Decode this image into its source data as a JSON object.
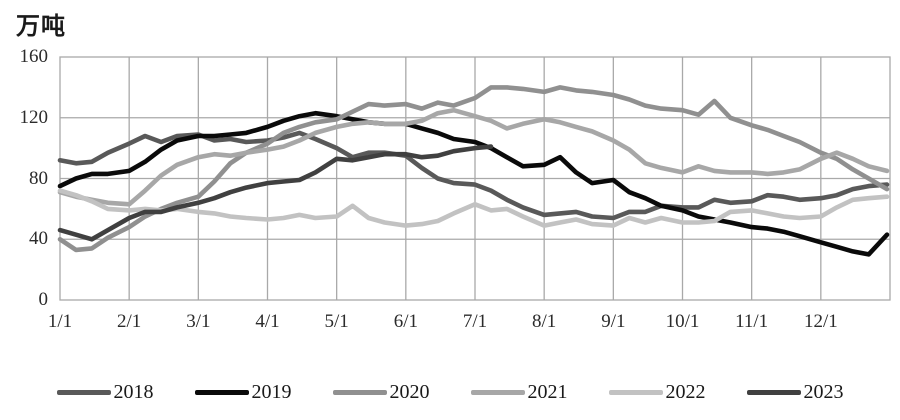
{
  "title": {
    "unit_label": "万吨"
  },
  "chart_data": {
    "type": "line",
    "grid": true,
    "legend_position": "bottom",
    "ylim": [
      0,
      160
    ],
    "y_ticks": [
      0,
      40,
      80,
      120,
      160
    ],
    "x_tick_labels": [
      "1/1",
      "2/1",
      "3/1",
      "4/1",
      "5/1",
      "6/1",
      "7/1",
      "8/1",
      "9/1",
      "10/1",
      "11/1",
      "12/1"
    ],
    "points_per_month": 4,
    "note": "values are weekly (4 per month: day 1/8/15/22), estimated from pixels; full-year series have a 49th year-end point; 2023 ends in early July",
    "series": [
      {
        "name": "2018",
        "color": "#595959",
        "values": [
          92,
          90,
          91,
          97,
          103,
          108,
          104,
          108,
          109,
          105,
          106,
          104,
          105,
          107,
          110,
          106,
          100,
          94,
          97,
          97,
          95,
          87,
          80,
          77,
          76,
          72,
          66,
          61,
          56,
          57,
          58,
          55,
          54,
          58,
          58,
          62,
          61,
          61,
          66,
          64,
          65,
          69,
          68,
          66,
          67,
          69,
          73,
          75,
          76
        ]
      },
      {
        "name": "2019",
        "color": "#0a0a0a",
        "values": [
          75,
          80,
          83,
          83,
          85,
          91,
          99,
          105,
          108,
          108,
          109,
          110,
          114,
          118,
          121,
          123,
          121,
          119,
          117,
          116,
          116,
          113,
          110,
          106,
          104,
          100,
          94,
          88,
          89,
          94,
          84,
          77,
          79,
          71,
          67,
          62,
          59,
          55,
          53,
          51,
          48,
          47,
          45,
          42,
          38,
          35,
          32,
          30,
          43
        ]
      },
      {
        "name": "2020",
        "color": "#909090",
        "values": [
          40,
          33,
          34,
          41,
          48,
          55,
          60,
          64,
          68,
          78,
          90,
          97,
          103,
          110,
          114,
          117,
          119,
          124,
          129,
          128,
          129,
          126,
          130,
          128,
          133,
          140,
          140,
          139,
          137,
          140,
          138,
          137,
          135,
          132,
          128,
          126,
          125,
          122,
          131,
          120,
          115,
          112,
          108,
          104,
          97,
          93,
          86,
          80,
          73
        ]
      },
      {
        "name": "2021",
        "color": "#a7a7a7",
        "values": [
          71,
          68,
          66,
          64,
          63,
          72,
          82,
          89,
          94,
          96,
          95,
          97,
          99,
          101,
          105,
          110,
          114,
          116,
          117,
          116,
          116,
          118,
          123,
          125,
          121,
          118,
          113,
          116,
          119,
          117,
          114,
          111,
          105,
          99,
          90,
          87,
          84,
          88,
          85,
          84,
          84,
          83,
          84,
          86,
          93,
          97,
          93,
          88,
          85
        ]
      },
      {
        "name": "2022",
        "color": "#c2c2c2",
        "values": [
          72,
          69,
          65,
          60,
          59,
          60,
          59,
          60,
          58,
          57,
          55,
          54,
          53,
          54,
          56,
          54,
          55,
          62,
          54,
          51,
          49,
          50,
          52,
          57,
          63,
          59,
          60,
          55,
          49,
          51,
          53,
          50,
          49,
          54,
          51,
          54,
          51,
          51,
          52,
          58,
          59,
          57,
          55,
          54,
          55,
          61,
          66,
          67,
          68
        ]
      },
      {
        "name": "2023",
        "color": "#404040",
        "values": [
          46,
          43,
          40,
          46,
          54,
          58,
          58,
          61,
          64,
          67,
          71,
          74,
          77,
          78,
          79,
          84,
          93,
          92,
          94,
          96,
          96,
          94,
          95,
          98,
          100,
          101
        ]
      }
    ]
  },
  "legend": {
    "items": [
      {
        "label": "2018"
      },
      {
        "label": "2019"
      },
      {
        "label": "2020"
      },
      {
        "label": "2021"
      },
      {
        "label": "2022"
      },
      {
        "label": "2023"
      }
    ]
  }
}
